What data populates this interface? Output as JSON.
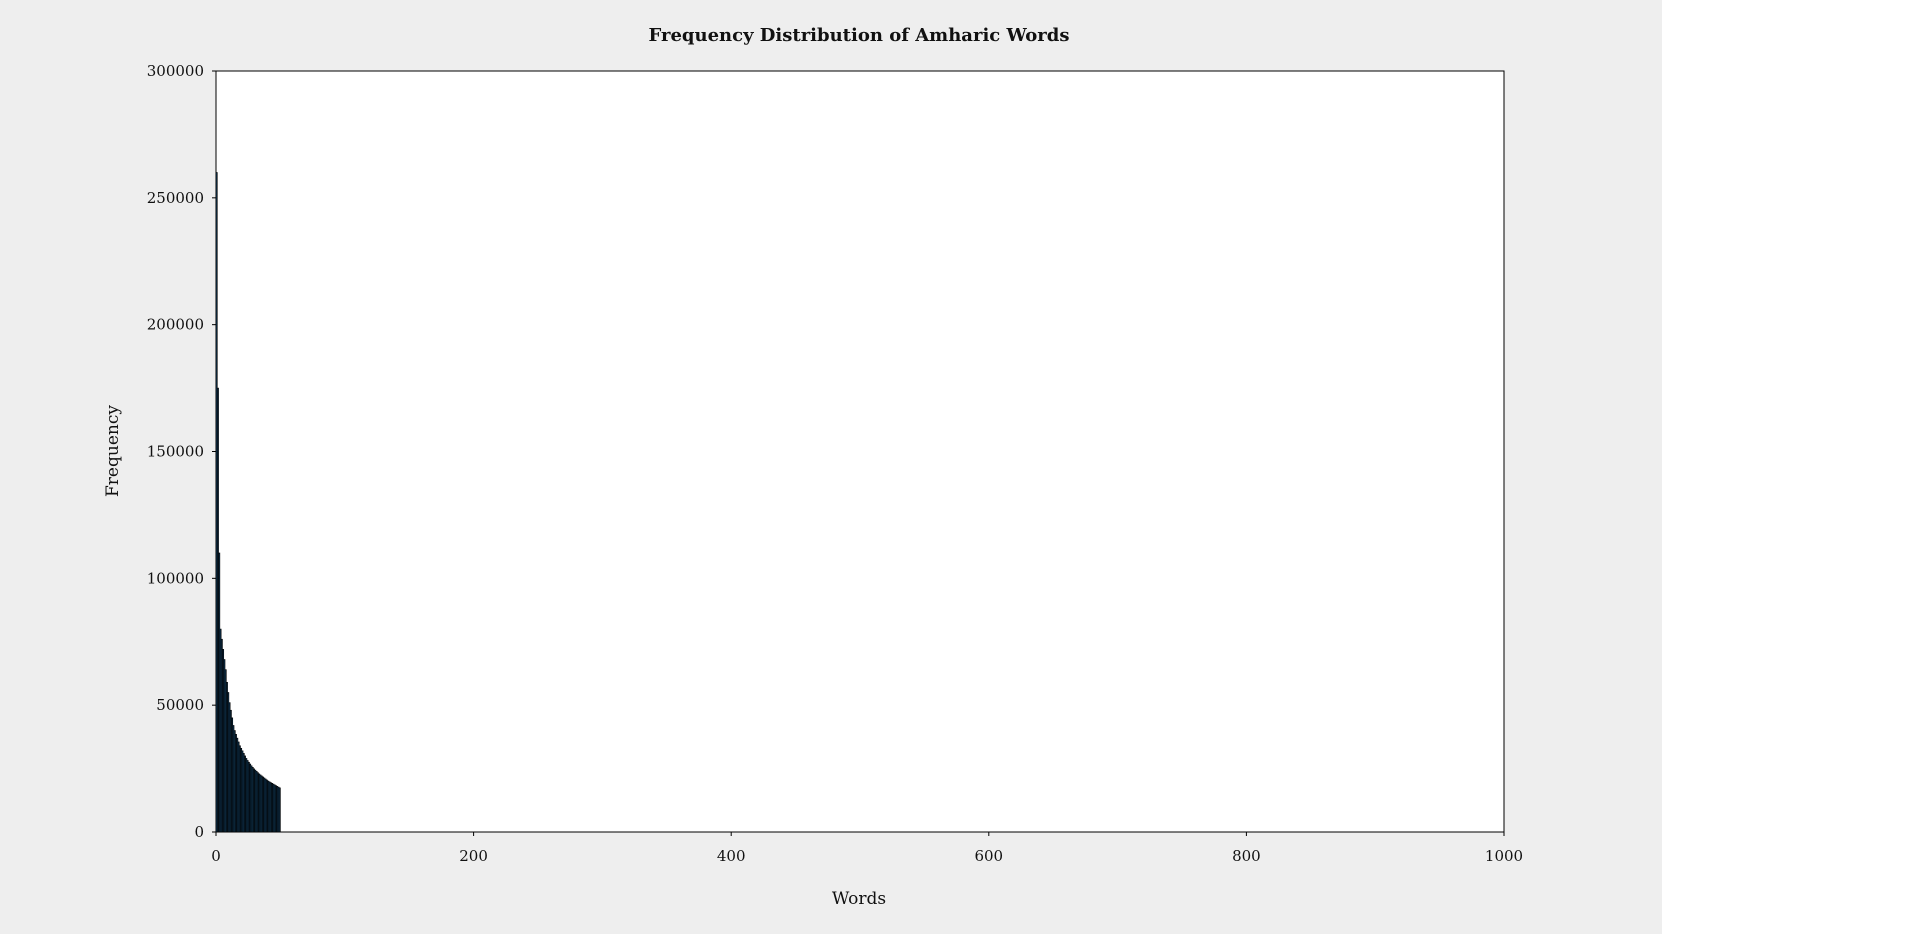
{
  "chart_data": {
    "type": "bar",
    "title": "Frequency Distribution of Amharic Words",
    "xlabel": "Words",
    "ylabel": "Frequency",
    "xlim": [
      0,
      1000
    ],
    "ylim": [
      0,
      300000
    ],
    "x_ticks": [
      "0",
      "200",
      "400",
      "600",
      "800",
      "1000"
    ],
    "y_ticks": [
      "0",
      "50000",
      "100000",
      "150000",
      "200000",
      "250000",
      "300000"
    ],
    "bar_color": "#0f3552",
    "bar_edge_color": "#000000",
    "grid": false,
    "legend": "none",
    "series": [
      {
        "values": [
          260000,
          175000,
          110000,
          80000,
          76000,
          72000,
          68000,
          64000,
          59000,
          55000,
          51000,
          48000,
          45000,
          42000,
          40000,
          38500,
          37000,
          35500,
          34000,
          33000,
          32000,
          31000,
          30000,
          29000,
          28200,
          27500,
          26800,
          26100,
          25500,
          24900,
          24400,
          23900,
          23400,
          22900,
          22500,
          22100,
          21700,
          21300,
          20900,
          20500,
          20100,
          19800,
          19500,
          19200,
          18900,
          18600,
          18300,
          18000,
          17700,
          17400
        ]
      }
    ]
  }
}
